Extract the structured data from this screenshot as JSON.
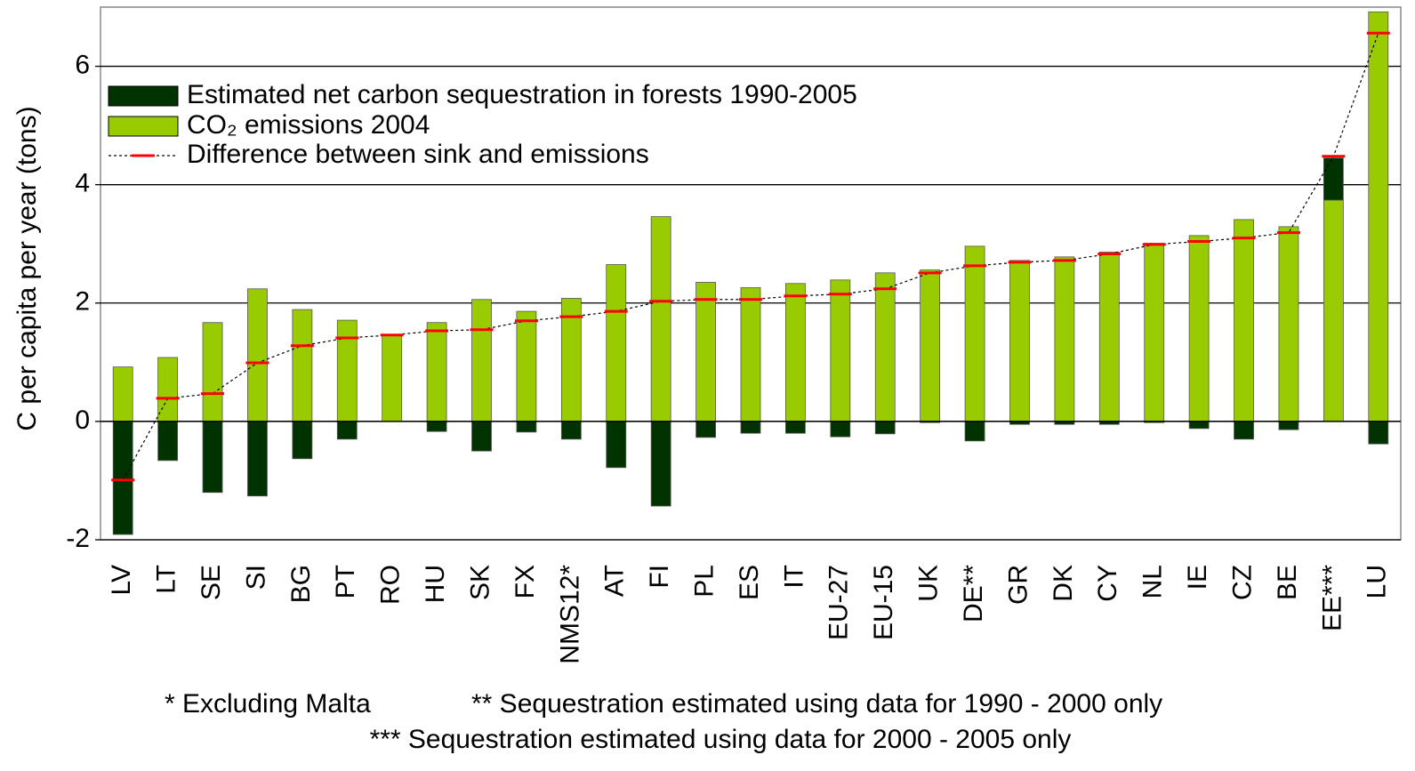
{
  "chart_data": {
    "type": "bar",
    "ylabel": "C per capita per year (tons)",
    "categories": [
      "LV",
      "LT",
      "SE",
      "SI",
      "BG",
      "PT",
      "RO",
      "HU",
      "SK",
      "FX",
      "NMS12*",
      "AT",
      "FI",
      "PL",
      "ES",
      "IT",
      "EU-27",
      "EU-15",
      "UK",
      "DE**",
      "GR",
      "DK",
      "CY",
      "NL",
      "IE",
      "CZ",
      "BE",
      "EE***",
      "LU"
    ],
    "series": [
      {
        "name": "Estimated net carbon sequestration in forests 1990-2005",
        "color": "#003300",
        "values": [
          -1.91,
          -0.66,
          -1.2,
          -1.26,
          -0.63,
          -0.3,
          0,
          -0.17,
          -0.5,
          -0.18,
          -0.3,
          -0.78,
          -1.43,
          -0.27,
          -0.2,
          -0.2,
          -0.26,
          -0.21,
          -0.02,
          -0.33,
          -0.05,
          -0.05,
          -0.05,
          -0.02,
          -0.12,
          -0.3,
          -0.14,
          0.71,
          -0.38
        ]
      },
      {
        "name": "CO₂ emissions 2004",
        "color": "#99cc00",
        "values": [
          0.92,
          1.08,
          1.67,
          2.24,
          1.89,
          1.71,
          1.46,
          1.67,
          2.06,
          1.86,
          2.08,
          2.65,
          3.46,
          2.35,
          2.26,
          2.33,
          2.39,
          2.51,
          2.56,
          2.96,
          2.72,
          2.78,
          2.86,
          3.01,
          3.14,
          3.41,
          3.29,
          3.74,
          6.92
        ]
      },
      {
        "name": "Difference between sink and emissions",
        "color": "#ff0000",
        "type": "line",
        "values": [
          -0.99,
          0.39,
          0.47,
          0.99,
          1.28,
          1.41,
          1.46,
          1.53,
          1.55,
          1.7,
          1.77,
          1.86,
          2.03,
          2.06,
          2.06,
          2.12,
          2.15,
          2.24,
          2.51,
          2.63,
          2.69,
          2.72,
          2.83,
          2.99,
          3.04,
          3.1,
          3.19,
          4.48,
          6.56
        ]
      }
    ],
    "ylim": [
      -2,
      7
    ],
    "yticks": [
      -2,
      0,
      2,
      4,
      6
    ],
    "grid": true,
    "legend": "upper left",
    "notes": [
      "* Excluding Malta",
      "** Sequestration estimated using data for 1990 - 2000 only",
      "*** Sequestration estimated using data for 2000 - 2005 only"
    ]
  }
}
